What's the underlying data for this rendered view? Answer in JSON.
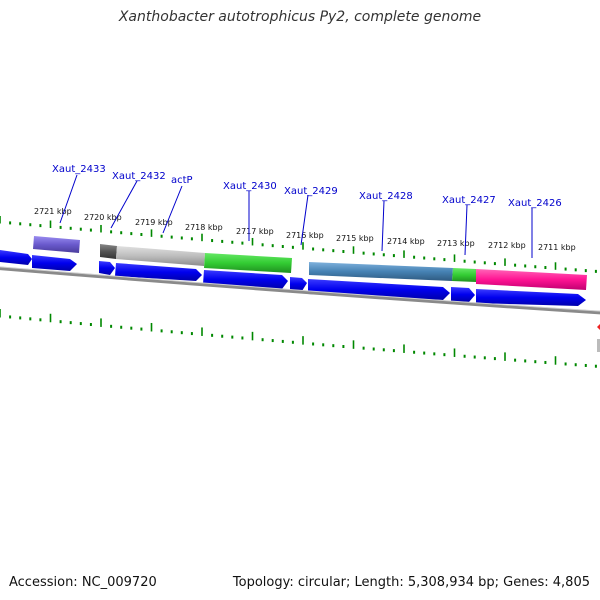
{
  "title": "Xanthobacter autotrophicus Py2, complete genome",
  "accession": "Accession: NC_009720",
  "topology": "Topology: circular; Length: 5,308,934 bp; Genes: 4,805",
  "gene_labels": [
    "Xaut_2433",
    "Xaut_2432",
    "actP",
    "Xaut_2430",
    "Xaut_2429",
    "Xaut_2428",
    "Xaut_2427",
    "Xaut_2426"
  ],
  "kbp_labels": [
    "2721 kbp",
    "2720 kbp",
    "2719 kbp",
    "2718 kbp",
    "2717 kbp",
    "2716 kbp",
    "2715 kbp",
    "2714 kbp",
    "2713 kbp",
    "2712 kbp",
    "2711 kbp"
  ],
  "colors": {
    "gene_arrow": "#0000ee",
    "tick": "#008800",
    "label": "#0000cc",
    "backbone": "#888888",
    "feature_purple": "#6a5acd",
    "feature_gray": "#bbbbbb",
    "feature_green": "#33cc33",
    "feature_steelblue": "#4682b4",
    "feature_magenta": "#ff1493"
  }
}
